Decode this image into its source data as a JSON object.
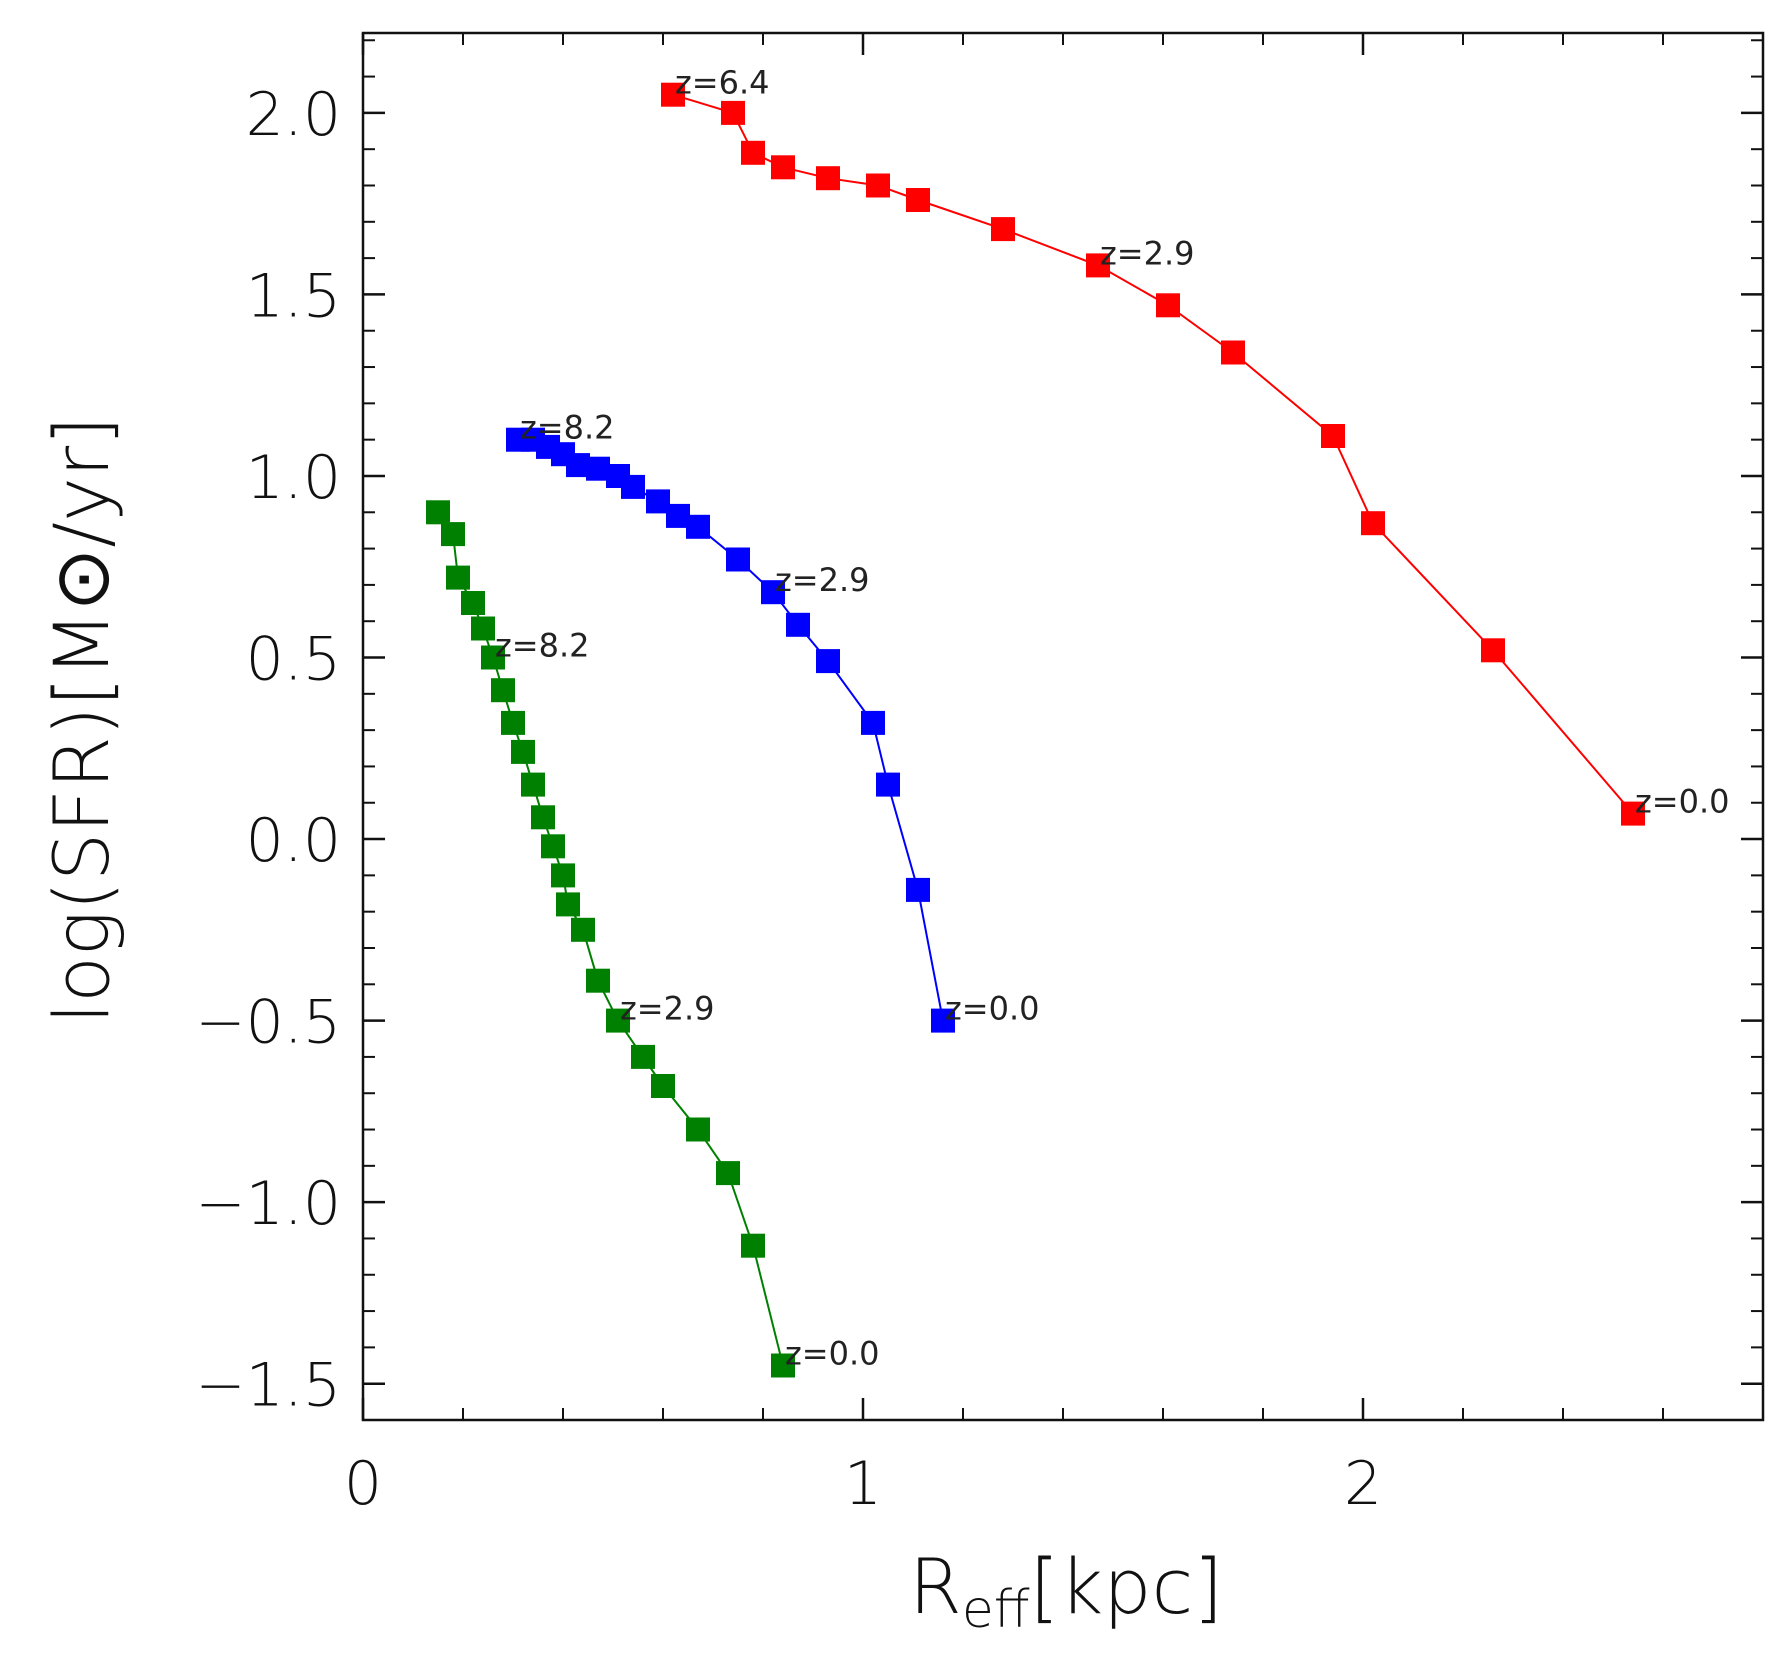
{
  "chart_data": {
    "type": "line",
    "title": "",
    "xlabel": "R",
    "xlabel_sub": "eff",
    "xlabel_unit": "[kpc]",
    "ylabel": "log(SFR)[M",
    "ylabel_symbol": "⊙",
    "ylabel_unit": "/yr]",
    "xlim": [
      0,
      2.8
    ],
    "ylim": [
      -1.6,
      2.22
    ],
    "xticks": [
      0,
      1,
      2
    ],
    "xtick_labels": [
      "0",
      "1",
      "2"
    ],
    "yticks": [
      2.0,
      1.5,
      1.0,
      0.5,
      0.0,
      -0.5,
      -1.0,
      -1.5
    ],
    "ytick_labels": [
      "2.0",
      "1.5",
      "1.0",
      "0.5",
      "0.0",
      "−0.5",
      "−1.0",
      "−1.5"
    ],
    "marker": "square",
    "legend": "none",
    "series": [
      {
        "name": "red",
        "color": "#ff0000",
        "x": [
          0.62,
          0.74,
          0.78,
          0.84,
          0.93,
          1.03,
          1.11,
          1.28,
          1.47,
          1.61,
          1.74,
          1.94,
          2.02,
          2.26,
          2.54
        ],
        "y": [
          2.05,
          2.0,
          1.89,
          1.85,
          1.82,
          1.8,
          1.76,
          1.68,
          1.58,
          1.47,
          1.34,
          1.11,
          0.87,
          0.52,
          0.07
        ],
        "annotations": [
          {
            "index": 0,
            "text": "z=6.4"
          },
          {
            "index": 8,
            "text": "z=2.9"
          },
          {
            "index": 14,
            "text": "z=0.0"
          }
        ]
      },
      {
        "name": "blue",
        "color": "#0000ff",
        "x": [
          0.31,
          0.34,
          0.37,
          0.4,
          0.43,
          0.47,
          0.51,
          0.54,
          0.59,
          0.63,
          0.67,
          0.75,
          0.82,
          0.87,
          0.93,
          1.02,
          1.05,
          1.11,
          1.16
        ],
        "y": [
          1.1,
          1.1,
          1.08,
          1.06,
          1.03,
          1.02,
          1.0,
          0.97,
          0.93,
          0.89,
          0.86,
          0.77,
          0.68,
          0.59,
          0.49,
          0.32,
          0.15,
          -0.14,
          -0.5
        ],
        "annotations": [
          {
            "index": 0,
            "text": "z=8.2"
          },
          {
            "index": 12,
            "text": "z=2.9"
          },
          {
            "index": 18,
            "text": "z=0.0"
          }
        ]
      },
      {
        "name": "green",
        "color": "#008000",
        "x": [
          0.15,
          0.18,
          0.19,
          0.22,
          0.24,
          0.26,
          0.28,
          0.3,
          0.32,
          0.34,
          0.36,
          0.38,
          0.4,
          0.41,
          0.44,
          0.47,
          0.51,
          0.56,
          0.6,
          0.67,
          0.73,
          0.78,
          0.84
        ],
        "y": [
          0.9,
          0.84,
          0.72,
          0.65,
          0.58,
          0.5,
          0.41,
          0.32,
          0.24,
          0.15,
          0.06,
          -0.02,
          -0.1,
          -0.18,
          -0.25,
          -0.39,
          -0.5,
          -0.6,
          -0.68,
          -0.8,
          -0.92,
          -1.12,
          -1.45
        ],
        "annotations": [
          {
            "index": 5,
            "text": "z=8.2"
          },
          {
            "index": 16,
            "text": "z=2.9"
          },
          {
            "index": 22,
            "text": "z=0.0"
          }
        ]
      }
    ]
  }
}
